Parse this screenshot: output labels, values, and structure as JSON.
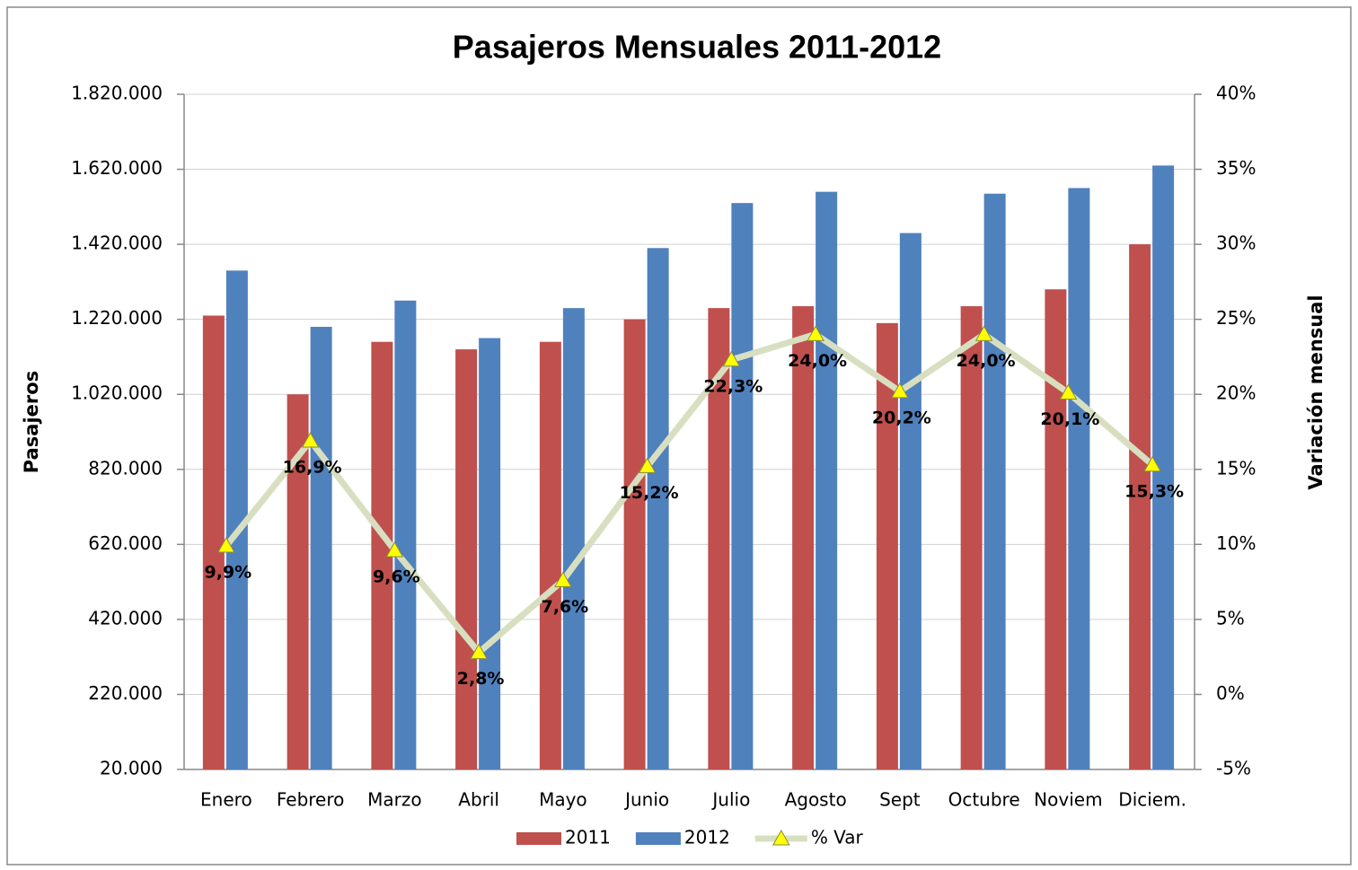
{
  "chart_data": {
    "type": "bar_line",
    "title": "Pasajeros Mensuales 2011-2012",
    "y_label": "Pasajeros",
    "y2_label": "Variación mensual",
    "categories": [
      "Enero",
      "Febrero",
      "Marzo",
      "Abril",
      "Mayo",
      "Junio",
      "Julio",
      "Agosto",
      "Sept",
      "Octubre",
      "Noviem",
      "Diciem."
    ],
    "series": [
      {
        "name": "2011",
        "type": "bar",
        "color": "#c0504d",
        "values": [
          1230000,
          1020000,
          1160000,
          1140000,
          1160000,
          1220000,
          1250000,
          1255000,
          1210000,
          1255000,
          1300000,
          1420000
        ]
      },
      {
        "name": "2012",
        "type": "bar",
        "color": "#4f81bd",
        "values": [
          1350000,
          1200000,
          1270000,
          1170000,
          1250000,
          1410000,
          1530000,
          1560000,
          1450000,
          1555000,
          1570000,
          1630000
        ]
      },
      {
        "name": "% Var",
        "type": "line",
        "axis": "y2",
        "color": "#d7dfc0",
        "marker_color": "#ffff00",
        "values": [
          9.9,
          16.9,
          9.6,
          2.8,
          7.6,
          15.2,
          22.3,
          24.0,
          20.2,
          24.0,
          20.1,
          15.3
        ],
        "value_labels": [
          "9,9%",
          "16,9%",
          "9,6%",
          "2,8%",
          "7,6%",
          "15,2%",
          "22,3%",
          "24,0%",
          "20,2%",
          "24,0%",
          "20,1%",
          "15,3%"
        ]
      }
    ],
    "ylim": [
      20000,
      1820000
    ],
    "yticks": [
      {
        "value": 20000,
        "label": "20.000"
      },
      {
        "value": 220000,
        "label": "220.000"
      },
      {
        "value": 420000,
        "label": "420.000"
      },
      {
        "value": 620000,
        "label": "620.000"
      },
      {
        "value": 820000,
        "label": "820.000"
      },
      {
        "value": 1020000,
        "label": "1.020.000"
      },
      {
        "value": 1220000,
        "label": "1.220.000"
      },
      {
        "value": 1420000,
        "label": "1.420.000"
      },
      {
        "value": 1620000,
        "label": "1.620.000"
      },
      {
        "value": 1820000,
        "label": "1.820.000"
      }
    ],
    "y2lim": [
      -5,
      40
    ],
    "y2ticks": [
      {
        "value": -5,
        "label": "-5%"
      },
      {
        "value": 0,
        "label": "0%"
      },
      {
        "value": 5,
        "label": "5%"
      },
      {
        "value": 10,
        "label": "10%"
      },
      {
        "value": 15,
        "label": "15%"
      },
      {
        "value": 20,
        "label": "20%"
      },
      {
        "value": 25,
        "label": "25%"
      },
      {
        "value": 30,
        "label": "30%"
      },
      {
        "value": 35,
        "label": "35%"
      },
      {
        "value": 40,
        "label": "40%"
      }
    ],
    "grid": true,
    "legend": "bottom"
  }
}
